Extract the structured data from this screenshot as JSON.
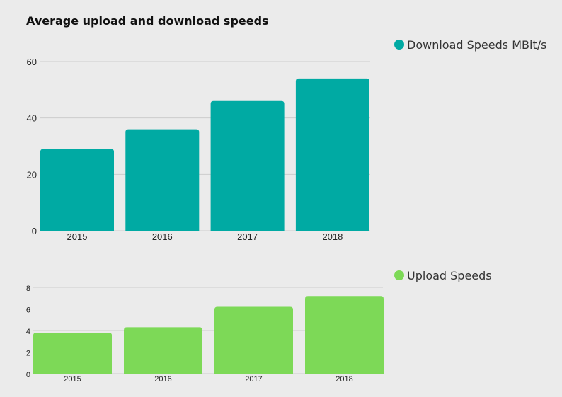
{
  "title": "Average upload and download speeds",
  "colors": {
    "download": "#00aaa3",
    "upload": "#7dd957",
    "grid": "#cccccc",
    "background": "#ebebeb"
  },
  "chart_data": [
    {
      "type": "bar",
      "categories": [
        "2015",
        "2016",
        "2017",
        "2018"
      ],
      "series": [
        {
          "name": "Download Speeds MBit/s",
          "values": [
            29,
            36,
            46,
            54
          ]
        }
      ],
      "ylim": [
        0,
        60
      ],
      "yticks": [
        0,
        20,
        40,
        60
      ],
      "grid": true,
      "legend": "top-right"
    },
    {
      "type": "bar",
      "categories": [
        "2015",
        "2016",
        "2017",
        "2018"
      ],
      "series": [
        {
          "name": "Upload Speeds",
          "values": [
            3.8,
            4.3,
            6.2,
            7.2
          ]
        }
      ],
      "ylim": [
        0,
        8
      ],
      "yticks": [
        0,
        2,
        4,
        6,
        8
      ],
      "grid": true,
      "legend": "top-right"
    }
  ]
}
